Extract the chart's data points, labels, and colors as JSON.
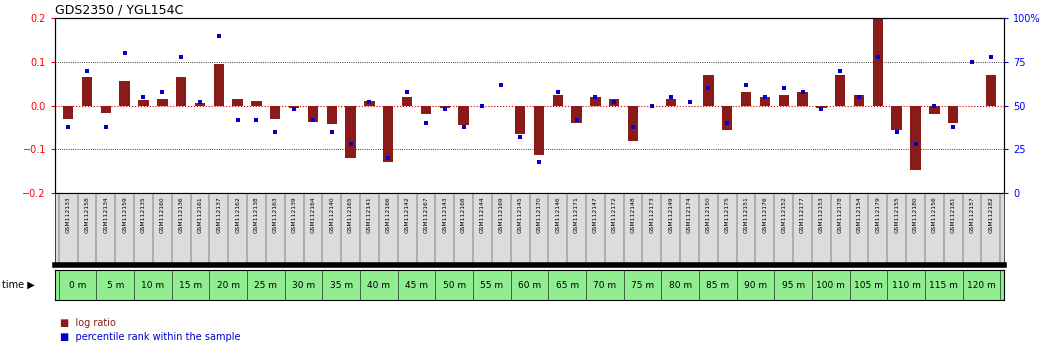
{
  "title": "GDS2350 / YGL154C",
  "samples": [
    "GSM112133",
    "GSM112158",
    "GSM112134",
    "GSM112159",
    "GSM112135",
    "GSM112160",
    "GSM112136",
    "GSM112161",
    "GSM112137",
    "GSM112162",
    "GSM112138",
    "GSM112163",
    "GSM112139",
    "GSM112164",
    "GSM112140",
    "GSM112165",
    "GSM112141",
    "GSM112166",
    "GSM112142",
    "GSM112167",
    "GSM112143",
    "GSM112168",
    "GSM112144",
    "GSM112169",
    "GSM112145",
    "GSM112170",
    "GSM112146",
    "GSM112171",
    "GSM112147",
    "GSM112172",
    "GSM112148",
    "GSM112173",
    "GSM112149",
    "GSM112174",
    "GSM112150",
    "GSM112175",
    "GSM112151",
    "GSM112176",
    "GSM112152",
    "GSM112177",
    "GSM112153",
    "GSM112178",
    "GSM112154",
    "GSM112179",
    "GSM112155",
    "GSM112180",
    "GSM112156",
    "GSM112181",
    "GSM112157",
    "GSM112182"
  ],
  "log_ratio": [
    -0.03,
    0.065,
    -0.018,
    0.055,
    0.012,
    0.016,
    0.065,
    0.005,
    0.095,
    0.015,
    0.01,
    -0.03,
    -0.005,
    -0.038,
    -0.042,
    -0.12,
    0.01,
    -0.128,
    0.02,
    -0.02,
    -0.005,
    -0.045,
    0.0,
    0.0,
    -0.065,
    -0.112,
    0.025,
    -0.04,
    0.02,
    0.016,
    -0.082,
    0.0,
    0.015,
    0.0,
    0.07,
    -0.055,
    0.03,
    0.02,
    0.025,
    0.03,
    -0.005,
    0.07,
    0.025,
    0.2,
    -0.055,
    -0.148,
    -0.02,
    -0.04,
    0.0,
    0.07
  ],
  "percentile_rank": [
    38,
    70,
    38,
    80,
    55,
    58,
    78,
    52,
    90,
    42,
    42,
    35,
    48,
    42,
    35,
    28,
    52,
    20,
    58,
    40,
    48,
    38,
    50,
    62,
    32,
    18,
    58,
    42,
    55,
    52,
    38,
    50,
    55,
    52,
    60,
    40,
    62,
    55,
    60,
    58,
    48,
    70,
    55,
    78,
    35,
    28,
    50,
    38,
    75,
    78
  ],
  "bar_color": "#8B1A1A",
  "dot_color": "#0000CD",
  "ylim": [
    -0.2,
    0.2
  ],
  "y2lim": [
    0,
    100
  ],
  "zero_line_color": "#CC0000",
  "time_bg_color": "#90EE90",
  "sample_bg_color": "#DCDCDC",
  "plot_bg_color": "#FFFFFF",
  "time_group_labels": [
    "0 m",
    "5 m",
    "10 m",
    "15 m",
    "20 m",
    "25 m",
    "30 m",
    "35 m",
    "40 m",
    "45 m",
    "50 m",
    "55 m",
    "60 m",
    "65 m",
    "70 m",
    "75 m",
    "80 m",
    "85 m",
    "90 m",
    "95 m",
    "100 m",
    "105 m",
    "110 m",
    "115 m",
    "120 m"
  ]
}
